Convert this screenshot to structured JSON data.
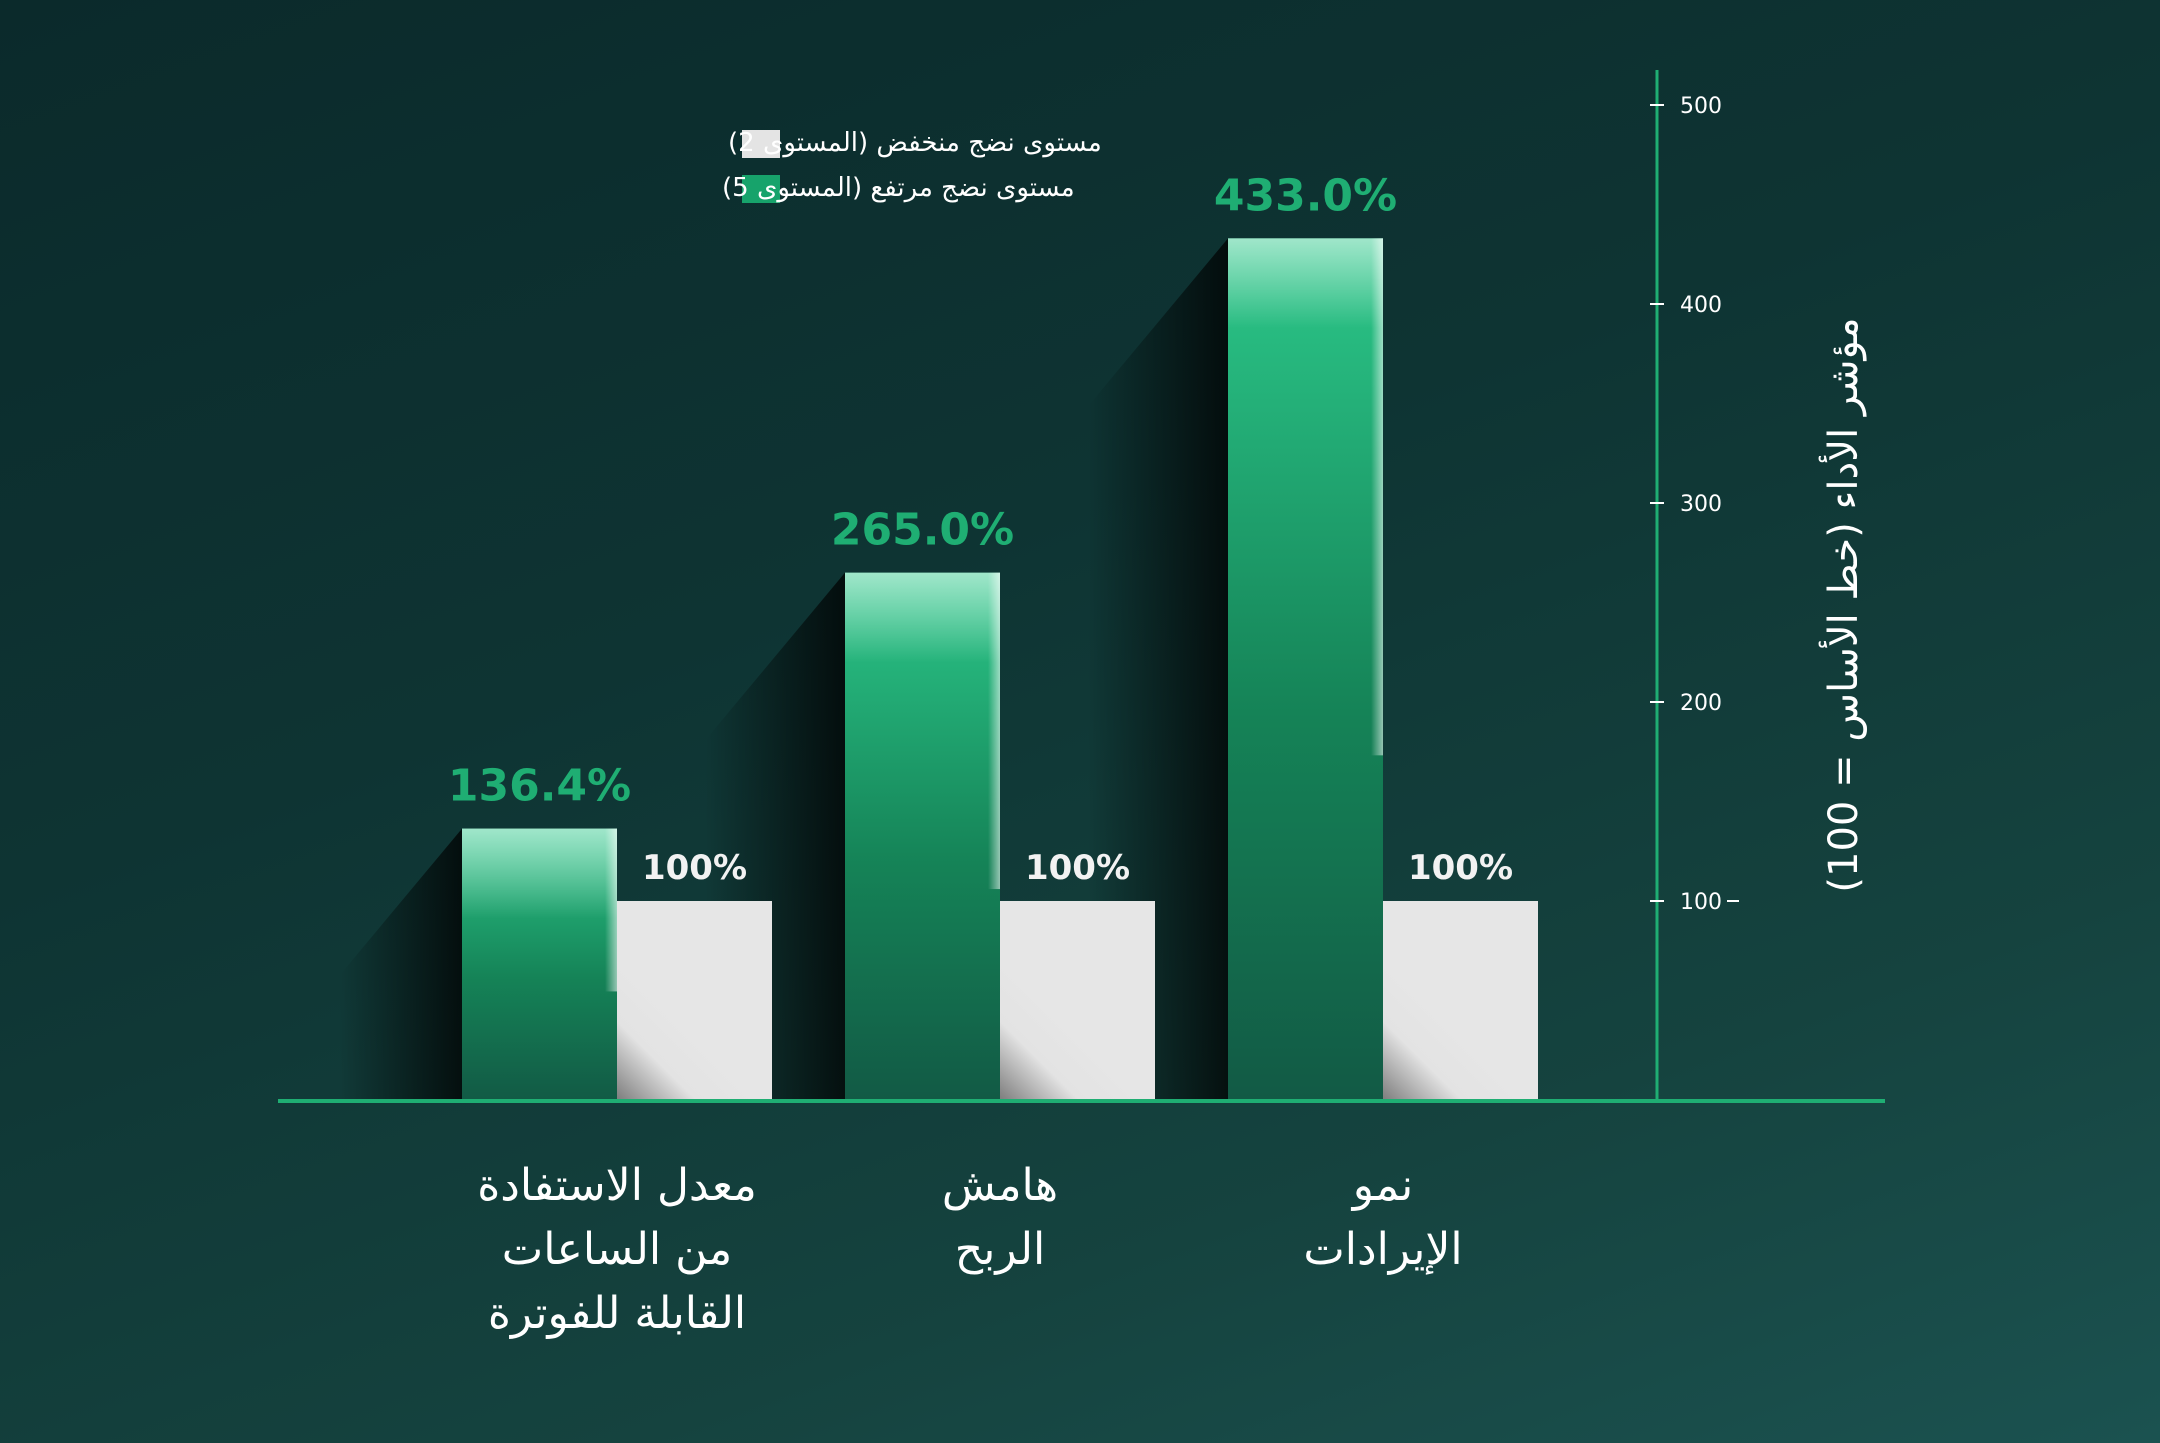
{
  "chart_data": {
    "type": "bar",
    "categories": [
      [
        "معدل الاستفادة",
        "من الساعات",
        "القابلة للفوترة"
      ],
      [
        "هامش",
        "الربح"
      ],
      [
        "نمو",
        "الإيرادات"
      ]
    ],
    "series": [
      {
        "name": "مستوى نضج مرتفع (المستوى 5)",
        "values": [
          136.4,
          265.0,
          433.0
        ],
        "labels": [
          "136.4%",
          "265.0%",
          "433.0%"
        ],
        "color": "#17a36b"
      },
      {
        "name": "مستوى نضج منخفض (المستوى 2)",
        "values": [
          100,
          100,
          100
        ],
        "labels": [
          "100%",
          "100%",
          "100%"
        ],
        "color": "#e4e4e4"
      }
    ],
    "ylabel": "مؤشر الأداء (خط الأساس = 100)",
    "yticks": [
      100,
      200,
      300,
      400,
      500
    ],
    "ylim": [
      0,
      500
    ],
    "axis_side": "right",
    "grid": false,
    "legend_position": "top-left"
  },
  "colors": {
    "axis": "#1fae73",
    "accent": "#1fae73",
    "background": "#0e3433"
  }
}
